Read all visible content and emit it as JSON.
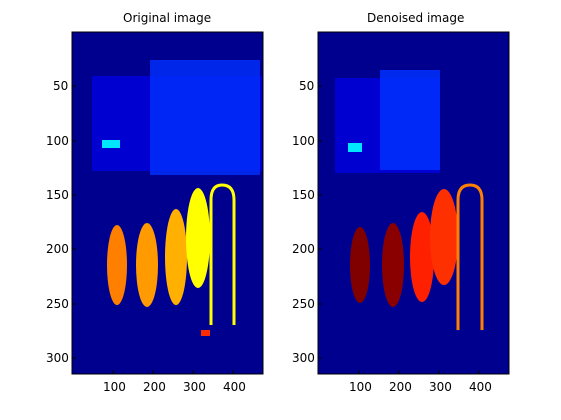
{
  "figure": {
    "panels": [
      {
        "title": "Original image",
        "x_ticks": [
          "100",
          "200",
          "300",
          "400"
        ],
        "y_ticks": [
          "50",
          "100",
          "150",
          "200",
          "250",
          "300"
        ]
      },
      {
        "title": "Denoised image",
        "x_ticks": [
          "100",
          "200",
          "300",
          "400"
        ],
        "y_ticks": [
          "50",
          "100",
          "150",
          "200",
          "250",
          "300"
        ]
      }
    ]
  },
  "colors": {
    "background": "#00008f",
    "dark_blue": "#0000c8",
    "blue": "#0040ff",
    "cyan": "#00e6ff",
    "orange": "#ff8000",
    "light_orange": "#ff9a00",
    "yellow": "#ffff00",
    "red": "#ff2a00",
    "dark_red": "#800000"
  }
}
